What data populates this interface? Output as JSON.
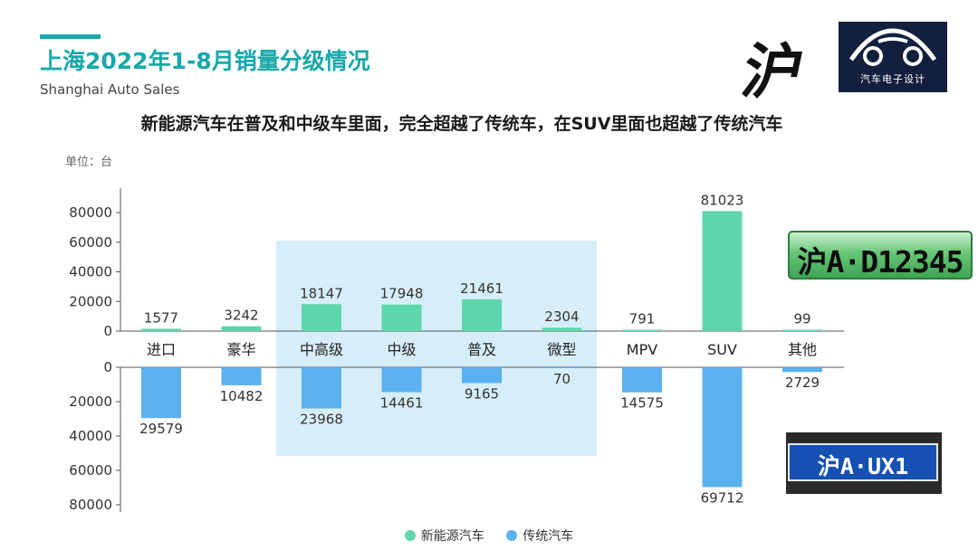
{
  "header": {
    "title": "上海2022年1-8月销量分级情况",
    "subtitle": "Shanghai Auto Sales",
    "headline": "新能源汽车在普及和中级车里面，完全超越了传统车，在SUV里面也超越了传统汽车",
    "unit": "单位：台"
  },
  "decor": {
    "calligraphy": "沪",
    "logo_text": "汽车电子设计",
    "plate_green": "沪A·D12345",
    "plate_blue": "沪A·UX1"
  },
  "colors": {
    "accent": "#17a8a8",
    "nev": "#5ed6ab",
    "traditional": "#5bb0f0",
    "highlight": "#d6eef9"
  },
  "legend": {
    "nev": "新能源汽车",
    "traditional": "传统汽车"
  },
  "chart_data": {
    "type": "bar",
    "categories": [
      "进口",
      "豪华",
      "中高级",
      "中级",
      "普及",
      "微型",
      "MPV",
      "SUV",
      "其他"
    ],
    "series": [
      {
        "name": "新能源汽车",
        "values": [
          1577,
          3242,
          18147,
          17948,
          21461,
          2304,
          791,
          81023,
          99
        ],
        "color": "#5ed6ab"
      },
      {
        "name": "传统汽车",
        "values": [
          29579,
          10482,
          23968,
          14461,
          9165,
          70,
          14575,
          69712,
          2729
        ],
        "color": "#5bb0f0"
      }
    ],
    "top_ticks": [
      "0",
      "20000",
      "40000",
      "60000",
      "80000"
    ],
    "bottom_ticks": [
      "0",
      "20000",
      "40000",
      "60000",
      "80000"
    ],
    "ylim": [
      0,
      80000
    ],
    "highlight_categories": [
      "中高级",
      "中级",
      "普及",
      "微型"
    ]
  }
}
